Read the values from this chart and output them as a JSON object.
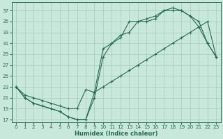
{
  "xlabel": "Humidex (Indice chaleur)",
  "bg_color": "#c8e8dc",
  "grid_color": "#a8c8bc",
  "line_color": "#2a6b55",
  "xlim": [
    -0.5,
    23.5
  ],
  "ylim": [
    16.5,
    38.5
  ],
  "xticks": [
    0,
    1,
    2,
    3,
    4,
    5,
    6,
    7,
    8,
    9,
    10,
    11,
    12,
    13,
    14,
    15,
    16,
    17,
    18,
    19,
    20,
    21,
    22,
    23
  ],
  "yticks": [
    17,
    19,
    21,
    23,
    25,
    27,
    29,
    31,
    33,
    35,
    37
  ],
  "line1_x": [
    0,
    1,
    2,
    3,
    4,
    5,
    6,
    7,
    8,
    9,
    10,
    11,
    12,
    13,
    14,
    15,
    16,
    17,
    18,
    19,
    20,
    21,
    22,
    23
  ],
  "line1_y": [
    23,
    21,
    20,
    19.5,
    19,
    18.5,
    17.5,
    17,
    17,
    22,
    30,
    31,
    32.5,
    33,
    35,
    35,
    35.5,
    37,
    37,
    37,
    36,
    35,
    31,
    28.5
  ],
  "line2_x": [
    0,
    1,
    2,
    3,
    4,
    5,
    6,
    7,
    8,
    9,
    10,
    11,
    12,
    13,
    14,
    15,
    16,
    17,
    18,
    19,
    20,
    21,
    22,
    23
  ],
  "line2_y": [
    23,
    21,
    20,
    19.5,
    19,
    18.5,
    17.5,
    17,
    17,
    21,
    28.5,
    31,
    32,
    35,
    35,
    35.5,
    36,
    37,
    37.5,
    37,
    36,
    34,
    31,
    28.5
  ],
  "line3_x": [
    0,
    1,
    2,
    3,
    4,
    5,
    6,
    7,
    8,
    9,
    10,
    11,
    12,
    13,
    14,
    15,
    16,
    17,
    18,
    19,
    20,
    21,
    22,
    23
  ],
  "line3_y": [
    23,
    21.5,
    21,
    20.5,
    20,
    19.5,
    19,
    19,
    22.5,
    22,
    23,
    24,
    25,
    26,
    27,
    28,
    29,
    30,
    31,
    32,
    33,
    34,
    35,
    28.5
  ]
}
